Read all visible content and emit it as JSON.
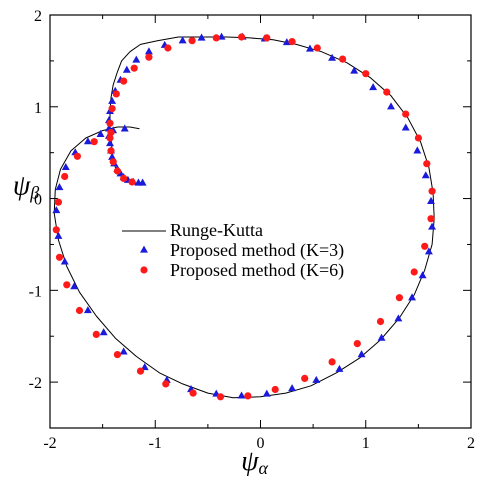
{
  "chart_data": {
    "type": "scatter",
    "title": "",
    "xlabel": "ψα",
    "ylabel": "ψβ",
    "xlabel_parts": {
      "base": "ψ",
      "sub": "α"
    },
    "ylabel_parts": {
      "base": "ψ",
      "sub": "β"
    },
    "xlim": [
      -2,
      2
    ],
    "ylim": [
      -2.5,
      2
    ],
    "xticks": [
      "-2",
      "-1",
      "0",
      "1",
      "2"
    ],
    "yticks": [
      "-2",
      "-1",
      "0",
      "1",
      "2"
    ],
    "grid": false,
    "legend_placement": "center-left",
    "series": [
      {
        "name": "Runge-Kutta",
        "style": "line",
        "color": "#000000",
        "x": [
          -1.12,
          -1.2,
          -1.28,
          -1.34,
          -1.38,
          -1.4,
          -1.41,
          -1.42,
          -1.43,
          -1.43,
          -1.42,
          -1.4,
          -1.36,
          -1.32,
          -1.24,
          -1.14,
          -0.98,
          -0.78,
          -0.56,
          -0.32,
          -0.1,
          0.12,
          0.34,
          0.58,
          0.82,
          1.04,
          1.24,
          1.4,
          1.52,
          1.6,
          1.64,
          1.65,
          1.63,
          1.56,
          1.46,
          1.32,
          1.14,
          0.94,
          0.72,
          0.48,
          0.24,
          0.0,
          -0.26,
          -0.5,
          -0.74,
          -0.96,
          -1.18,
          -1.38,
          -1.56,
          -1.72,
          -1.84,
          -1.92,
          -1.96,
          -1.95,
          -1.9,
          -1.8,
          -1.66,
          -1.5,
          -1.36,
          -1.24,
          -1.15
        ],
        "y": [
          0.17,
          0.17,
          0.2,
          0.26,
          0.34,
          0.44,
          0.54,
          0.66,
          0.8,
          0.95,
          1.1,
          1.24,
          1.38,
          1.5,
          1.6,
          1.68,
          1.72,
          1.76,
          1.76,
          1.76,
          1.75,
          1.73,
          1.68,
          1.6,
          1.48,
          1.32,
          1.12,
          0.88,
          0.62,
          0.34,
          0.06,
          -0.22,
          -0.5,
          -0.78,
          -1.05,
          -1.3,
          -1.54,
          -1.74,
          -1.9,
          -2.04,
          -2.12,
          -2.16,
          -2.17,
          -2.12,
          -2.02,
          -1.9,
          -1.72,
          -1.52,
          -1.28,
          -1.02,
          -0.74,
          -0.45,
          -0.16,
          0.1,
          0.32,
          0.52,
          0.66,
          0.74,
          0.78,
          0.78,
          0.76
        ]
      },
      {
        "name": "Proposed method (K=3)",
        "style": "marker-triangle",
        "color": "#1a1adb",
        "x": [
          -1.12,
          -1.16,
          -1.21,
          -1.26,
          -1.3,
          -1.33,
          -1.36,
          -1.39,
          -1.41,
          -1.42,
          -1.43,
          -1.44,
          -1.44,
          -1.44,
          -1.43,
          -1.41,
          -1.38,
          -1.33,
          -1.27,
          -1.18,
          -1.06,
          -0.91,
          -0.74,
          -0.56,
          -0.37,
          -0.17,
          0.04,
          0.25,
          0.47,
          0.68,
          0.89,
          1.07,
          1.24,
          1.38,
          1.49,
          1.57,
          1.62,
          1.63,
          1.6,
          1.54,
          1.44,
          1.31,
          1.15,
          0.96,
          0.75,
          0.53,
          0.3,
          0.06,
          -0.18,
          -0.42,
          -0.66,
          -0.89,
          -1.1,
          -1.3,
          -1.49,
          -1.64,
          -1.77,
          -1.86,
          -1.92,
          -1.94,
          -1.91,
          -1.85,
          -1.76,
          -1.64,
          -1.52,
          -1.4,
          -1.29
        ],
        "y": [
          0.17,
          0.17,
          0.18,
          0.2,
          0.23,
          0.27,
          0.32,
          0.38,
          0.45,
          0.52,
          0.6,
          0.68,
          0.76,
          0.85,
          0.95,
          1.06,
          1.17,
          1.29,
          1.4,
          1.51,
          1.6,
          1.67,
          1.72,
          1.75,
          1.76,
          1.76,
          1.74,
          1.7,
          1.63,
          1.53,
          1.39,
          1.21,
          1.0,
          0.77,
          0.52,
          0.25,
          -0.03,
          -0.31,
          -0.58,
          -0.84,
          -1.08,
          -1.31,
          -1.52,
          -1.7,
          -1.86,
          -1.98,
          -2.07,
          -2.13,
          -2.15,
          -2.13,
          -2.08,
          -1.98,
          -1.84,
          -1.67,
          -1.46,
          -1.22,
          -0.96,
          -0.69,
          -0.41,
          -0.13,
          0.12,
          0.34,
          0.5,
          0.62,
          0.7,
          0.74,
          0.76
        ]
      },
      {
        "name": "Proposed method (K=6)",
        "style": "marker-circle",
        "color": "#ff1a1a",
        "x": [
          -1.22,
          -1.3,
          -1.36,
          -1.4,
          -1.42,
          -1.43,
          -1.43,
          -1.41,
          -1.37,
          -1.3,
          -1.2,
          -1.06,
          -0.88,
          -0.65,
          -0.42,
          -0.18,
          0.06,
          0.3,
          0.54,
          0.78,
          1.0,
          1.2,
          1.38,
          1.5,
          1.58,
          1.63,
          1.62,
          1.56,
          1.46,
          1.32,
          1.14,
          0.92,
          0.68,
          0.42,
          0.14,
          -0.12,
          -0.38,
          -0.64,
          -0.9,
          -1.14,
          -1.36,
          -1.56,
          -1.72,
          -1.84,
          -1.91,
          -1.94,
          -1.92,
          -1.86,
          -1.74,
          -1.58,
          -1.42
        ],
        "y": [
          0.18,
          0.22,
          0.3,
          0.4,
          0.52,
          0.66,
          0.82,
          0.98,
          1.14,
          1.28,
          1.42,
          1.54,
          1.64,
          1.72,
          1.75,
          1.76,
          1.75,
          1.71,
          1.64,
          1.52,
          1.36,
          1.16,
          0.92,
          0.66,
          0.38,
          0.08,
          -0.22,
          -0.52,
          -0.8,
          -1.08,
          -1.34,
          -1.58,
          -1.78,
          -1.96,
          -2.08,
          -2.15,
          -2.16,
          -2.12,
          -2.02,
          -1.88,
          -1.7,
          -1.48,
          -1.22,
          -0.94,
          -0.64,
          -0.34,
          -0.04,
          0.24,
          0.46,
          0.62,
          0.72
        ]
      }
    ]
  }
}
